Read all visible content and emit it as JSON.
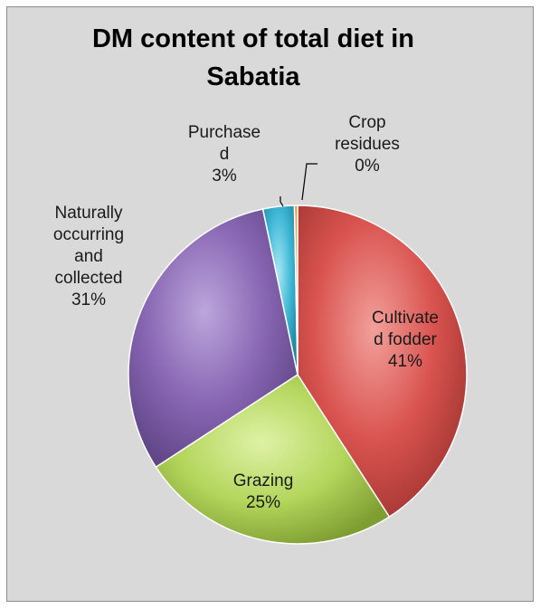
{
  "chart_data": {
    "type": "pie",
    "title_line1": "DM content of total diet in",
    "title_line2": "Sabatia",
    "slices": [
      {
        "label_lines": [
          "Cultivate",
          "d fodder"
        ],
        "value": 41,
        "pct_label": "41%",
        "color": "#d9534f",
        "light": "#f2a09b",
        "dark": "#a23632"
      },
      {
        "label_lines": [
          "Grazing"
        ],
        "value": 25,
        "pct_label": "25%",
        "color": "#b3d65c",
        "light": "#dff2a6",
        "dark": "#7f9e32"
      },
      {
        "label_lines": [
          "Naturally",
          "occurring",
          "and",
          "collected"
        ],
        "value": 31,
        "pct_label": "31%",
        "color": "#8866b3",
        "light": "#bca6dc",
        "dark": "#5e4585"
      },
      {
        "label_lines": [
          "Purchase",
          "d"
        ],
        "value": 3,
        "pct_label": "3%",
        "color": "#3fb8d6",
        "light": "#a6e6f5",
        "dark": "#1f86a0"
      },
      {
        "label_lines": [
          "Crop",
          "residues"
        ],
        "value": 0.3,
        "pct_label": "0%",
        "color": "#f29b3a",
        "light": "#f9c98f",
        "dark": "#b86b14"
      }
    ],
    "legend": "none"
  }
}
